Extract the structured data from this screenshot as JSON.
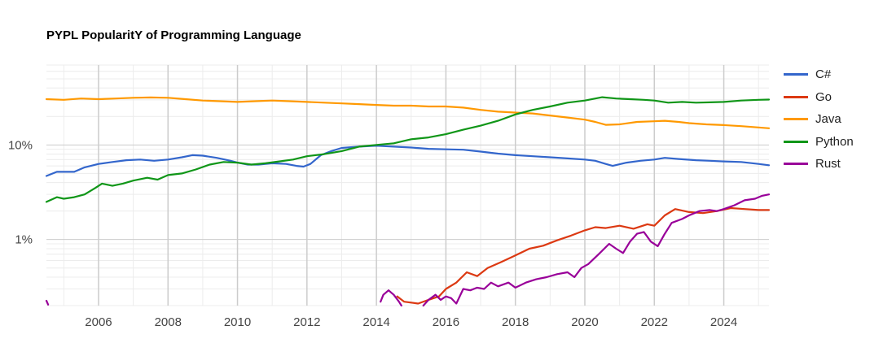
{
  "chart_data": {
    "type": "line",
    "title": "PYPL PopularitY of Programming Language",
    "xlabel": "",
    "ylabel": "",
    "y_scale": "log",
    "xlim": [
      2004.5,
      2025.3
    ],
    "ylim": [
      0.2,
      70
    ],
    "x_ticks": [
      {
        "value": 2006,
        "label": "2006"
      },
      {
        "value": 2008,
        "label": "2008"
      },
      {
        "value": 2010,
        "label": "2010"
      },
      {
        "value": 2012,
        "label": "2012"
      },
      {
        "value": 2014,
        "label": "2014"
      },
      {
        "value": 2016,
        "label": "2016"
      },
      {
        "value": 2018,
        "label": "2018"
      },
      {
        "value": 2020,
        "label": "2020"
      },
      {
        "value": 2022,
        "label": "2022"
      },
      {
        "value": 2024,
        "label": "2024"
      }
    ],
    "y_ticks": [
      {
        "value": 1,
        "label": "1%"
      },
      {
        "value": 10,
        "label": "10%"
      }
    ],
    "grid": true,
    "legend_position": "right",
    "series": [
      {
        "name": "C#",
        "color": "#3366cc",
        "points": [
          [
            2004.5,
            4.7
          ],
          [
            2004.8,
            5.2
          ],
          [
            2005.3,
            5.2
          ],
          [
            2005.6,
            5.8
          ],
          [
            2006.0,
            6.3
          ],
          [
            2006.4,
            6.6
          ],
          [
            2006.8,
            6.9
          ],
          [
            2007.2,
            7.0
          ],
          [
            2007.6,
            6.8
          ],
          [
            2008.0,
            7.0
          ],
          [
            2008.4,
            7.4
          ],
          [
            2008.7,
            7.8
          ],
          [
            2009.0,
            7.7
          ],
          [
            2009.4,
            7.3
          ],
          [
            2009.8,
            6.8
          ],
          [
            2010.0,
            6.5
          ],
          [
            2010.3,
            6.2
          ],
          [
            2010.6,
            6.2
          ],
          [
            2011.0,
            6.4
          ],
          [
            2011.4,
            6.3
          ],
          [
            2011.7,
            6.0
          ],
          [
            2011.9,
            5.9
          ],
          [
            2012.1,
            6.3
          ],
          [
            2012.4,
            7.8
          ],
          [
            2012.7,
            8.6
          ],
          [
            2013.0,
            9.3
          ],
          [
            2013.5,
            9.6
          ],
          [
            2014.0,
            9.8
          ],
          [
            2014.5,
            9.6
          ],
          [
            2015.0,
            9.4
          ],
          [
            2015.5,
            9.1
          ],
          [
            2016.0,
            9.0
          ],
          [
            2016.5,
            8.9
          ],
          [
            2017.0,
            8.5
          ],
          [
            2017.5,
            8.1
          ],
          [
            2018.0,
            7.8
          ],
          [
            2018.5,
            7.6
          ],
          [
            2019.0,
            7.4
          ],
          [
            2019.5,
            7.2
          ],
          [
            2020.0,
            7.0
          ],
          [
            2020.3,
            6.8
          ],
          [
            2020.6,
            6.3
          ],
          [
            2020.8,
            6.0
          ],
          [
            2021.2,
            6.5
          ],
          [
            2021.6,
            6.8
          ],
          [
            2022.0,
            7.0
          ],
          [
            2022.3,
            7.3
          ],
          [
            2022.7,
            7.1
          ],
          [
            2023.2,
            6.9
          ],
          [
            2023.6,
            6.8
          ],
          [
            2024.0,
            6.7
          ],
          [
            2024.5,
            6.6
          ],
          [
            2025.0,
            6.3
          ],
          [
            2025.3,
            6.1
          ]
        ]
      },
      {
        "name": "Go",
        "color": "#dc3912",
        "points": [
          [
            2014.6,
            0.25
          ],
          [
            2014.8,
            0.22
          ],
          [
            2015.2,
            0.21
          ],
          [
            2015.5,
            0.23
          ],
          [
            2015.8,
            0.25
          ],
          [
            2016.0,
            0.3
          ],
          [
            2016.3,
            0.35
          ],
          [
            2016.6,
            0.45
          ],
          [
            2016.9,
            0.41
          ],
          [
            2017.2,
            0.5
          ],
          [
            2017.6,
            0.58
          ],
          [
            2018.0,
            0.68
          ],
          [
            2018.4,
            0.8
          ],
          [
            2018.8,
            0.86
          ],
          [
            2019.2,
            0.98
          ],
          [
            2019.6,
            1.1
          ],
          [
            2020.0,
            1.25
          ],
          [
            2020.3,
            1.35
          ],
          [
            2020.6,
            1.32
          ],
          [
            2021.0,
            1.4
          ],
          [
            2021.4,
            1.3
          ],
          [
            2021.8,
            1.45
          ],
          [
            2022.0,
            1.4
          ],
          [
            2022.3,
            1.8
          ],
          [
            2022.6,
            2.1
          ],
          [
            2023.0,
            1.95
          ],
          [
            2023.4,
            1.9
          ],
          [
            2023.8,
            2.0
          ],
          [
            2024.2,
            2.15
          ],
          [
            2024.6,
            2.1
          ],
          [
            2025.0,
            2.05
          ],
          [
            2025.3,
            2.05
          ]
        ]
      },
      {
        "name": "Java",
        "color": "#ff9900",
        "points": [
          [
            2004.5,
            30.5
          ],
          [
            2005.0,
            30.0
          ],
          [
            2005.5,
            31.0
          ],
          [
            2006.0,
            30.5
          ],
          [
            2006.5,
            31.0
          ],
          [
            2007.0,
            31.5
          ],
          [
            2007.5,
            31.8
          ],
          [
            2008.0,
            31.5
          ],
          [
            2008.5,
            30.5
          ],
          [
            2009.0,
            29.5
          ],
          [
            2009.5,
            29.0
          ],
          [
            2010.0,
            28.5
          ],
          [
            2010.5,
            29.0
          ],
          [
            2011.0,
            29.5
          ],
          [
            2011.5,
            29.0
          ],
          [
            2012.0,
            28.5
          ],
          [
            2012.5,
            28.0
          ],
          [
            2013.0,
            27.5
          ],
          [
            2013.5,
            27.0
          ],
          [
            2014.0,
            26.5
          ],
          [
            2014.5,
            26.0
          ],
          [
            2015.0,
            26.0
          ],
          [
            2015.5,
            25.5
          ],
          [
            2016.0,
            25.5
          ],
          [
            2016.5,
            24.8
          ],
          [
            2017.0,
            23.5
          ],
          [
            2017.5,
            22.5
          ],
          [
            2018.0,
            22.0
          ],
          [
            2018.5,
            21.5
          ],
          [
            2019.0,
            20.5
          ],
          [
            2019.5,
            19.5
          ],
          [
            2020.0,
            18.5
          ],
          [
            2020.3,
            17.5
          ],
          [
            2020.6,
            16.3
          ],
          [
            2021.0,
            16.5
          ],
          [
            2021.5,
            17.5
          ],
          [
            2022.0,
            17.8
          ],
          [
            2022.3,
            18.0
          ],
          [
            2022.7,
            17.5
          ],
          [
            2023.0,
            17.0
          ],
          [
            2023.5,
            16.5
          ],
          [
            2024.0,
            16.2
          ],
          [
            2024.5,
            15.8
          ],
          [
            2025.0,
            15.3
          ],
          [
            2025.3,
            15.0
          ]
        ]
      },
      {
        "name": "Python",
        "color": "#109618",
        "points": [
          [
            2004.5,
            2.5
          ],
          [
            2004.8,
            2.8
          ],
          [
            2005.0,
            2.7
          ],
          [
            2005.3,
            2.8
          ],
          [
            2005.6,
            3.0
          ],
          [
            2005.9,
            3.5
          ],
          [
            2006.1,
            3.9
          ],
          [
            2006.4,
            3.7
          ],
          [
            2006.7,
            3.9
          ],
          [
            2007.0,
            4.2
          ],
          [
            2007.4,
            4.5
          ],
          [
            2007.7,
            4.3
          ],
          [
            2008.0,
            4.8
          ],
          [
            2008.4,
            5.0
          ],
          [
            2008.8,
            5.5
          ],
          [
            2009.2,
            6.2
          ],
          [
            2009.6,
            6.6
          ],
          [
            2010.0,
            6.5
          ],
          [
            2010.4,
            6.2
          ],
          [
            2010.8,
            6.4
          ],
          [
            2011.2,
            6.7
          ],
          [
            2011.6,
            7.0
          ],
          [
            2012.0,
            7.6
          ],
          [
            2012.5,
            8.0
          ],
          [
            2013.0,
            8.6
          ],
          [
            2013.5,
            9.6
          ],
          [
            2014.0,
            10.0
          ],
          [
            2014.5,
            10.4
          ],
          [
            2015.0,
            11.5
          ],
          [
            2015.5,
            12.0
          ],
          [
            2016.0,
            13.0
          ],
          [
            2016.5,
            14.5
          ],
          [
            2017.0,
            16.0
          ],
          [
            2017.5,
            18.0
          ],
          [
            2018.0,
            21.0
          ],
          [
            2018.5,
            23.5
          ],
          [
            2019.0,
            25.5
          ],
          [
            2019.5,
            28.0
          ],
          [
            2020.0,
            29.5
          ],
          [
            2020.5,
            32.0
          ],
          [
            2020.9,
            31.0
          ],
          [
            2021.3,
            30.5
          ],
          [
            2021.7,
            30.0
          ],
          [
            2022.0,
            29.5
          ],
          [
            2022.4,
            28.0
          ],
          [
            2022.8,
            28.5
          ],
          [
            2023.2,
            28.0
          ],
          [
            2023.6,
            28.2
          ],
          [
            2024.0,
            28.5
          ],
          [
            2024.5,
            29.5
          ],
          [
            2025.0,
            30.0
          ],
          [
            2025.3,
            30.2
          ]
        ]
      },
      {
        "name": "Rust",
        "color": "#990099",
        "points": [
          [
            2004.5,
            0.225
          ],
          [
            2004.55,
            0.205
          ],
          null,
          [
            2014.12,
            0.22
          ],
          [
            2014.2,
            0.26
          ],
          [
            2014.35,
            0.29
          ],
          [
            2014.5,
            0.26
          ],
          [
            2014.65,
            0.22
          ],
          [
            2014.72,
            0.2
          ],
          null,
          [
            2015.35,
            0.2
          ],
          [
            2015.5,
            0.23
          ],
          [
            2015.7,
            0.26
          ],
          [
            2015.85,
            0.23
          ],
          [
            2016.0,
            0.25
          ],
          [
            2016.15,
            0.24
          ],
          [
            2016.3,
            0.21
          ],
          [
            2016.5,
            0.3
          ],
          [
            2016.7,
            0.29
          ],
          [
            2016.9,
            0.31
          ],
          [
            2017.1,
            0.3
          ],
          [
            2017.3,
            0.35
          ],
          [
            2017.5,
            0.32
          ],
          [
            2017.8,
            0.35
          ],
          [
            2018.0,
            0.31
          ],
          [
            2018.3,
            0.35
          ],
          [
            2018.6,
            0.38
          ],
          [
            2018.9,
            0.4
          ],
          [
            2019.2,
            0.43
          ],
          [
            2019.5,
            0.45
          ],
          [
            2019.7,
            0.4
          ],
          [
            2019.9,
            0.5
          ],
          [
            2020.1,
            0.55
          ],
          [
            2020.4,
            0.7
          ],
          [
            2020.7,
            0.9
          ],
          [
            2020.9,
            0.8
          ],
          [
            2021.1,
            0.72
          ],
          [
            2021.3,
            0.95
          ],
          [
            2021.5,
            1.15
          ],
          [
            2021.7,
            1.2
          ],
          [
            2021.9,
            0.95
          ],
          [
            2022.1,
            0.85
          ],
          [
            2022.3,
            1.15
          ],
          [
            2022.5,
            1.5
          ],
          [
            2022.8,
            1.65
          ],
          [
            2023.0,
            1.8
          ],
          [
            2023.3,
            2.0
          ],
          [
            2023.6,
            2.05
          ],
          [
            2023.8,
            2.0
          ],
          [
            2024.0,
            2.1
          ],
          [
            2024.3,
            2.3
          ],
          [
            2024.6,
            2.6
          ],
          [
            2024.9,
            2.7
          ],
          [
            2025.1,
            2.9
          ],
          [
            2025.3,
            3.0
          ]
        ]
      }
    ]
  }
}
